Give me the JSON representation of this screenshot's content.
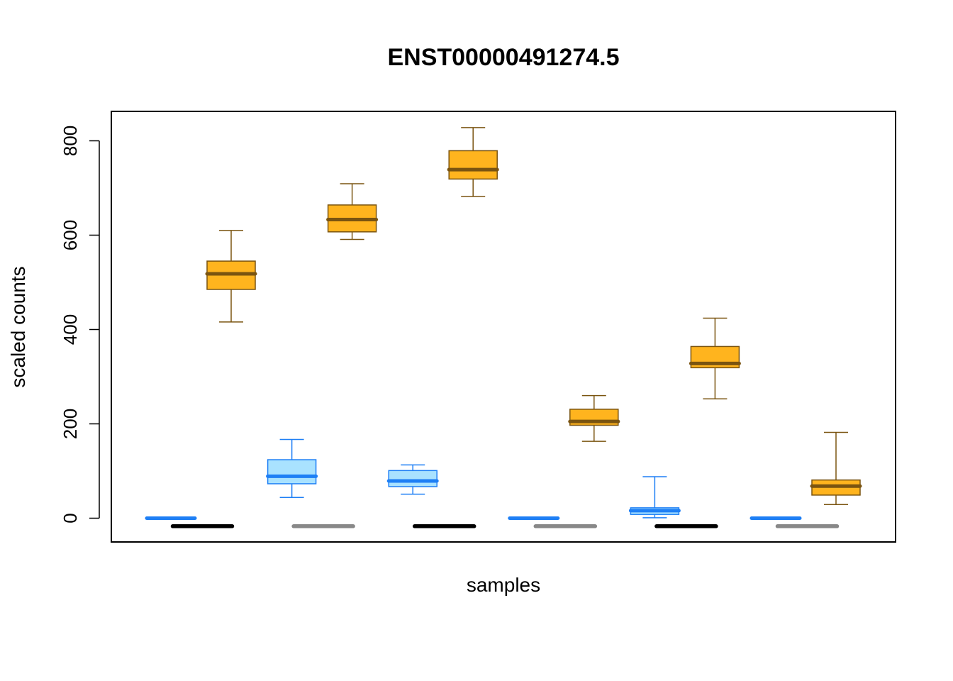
{
  "chart_data": {
    "type": "boxplot",
    "title": "ENST00000491274.5",
    "xlabel": "samples",
    "ylabel": "scaled counts",
    "ylim": [
      -50,
      860
    ],
    "yticks": [
      0,
      200,
      400,
      600,
      800
    ],
    "grid": false,
    "colors": {
      "blue_fill": "#a9e2ff",
      "blue_line": "#1e7ff5",
      "orange_fill": "#ffb41e",
      "orange_line": "#7a5410",
      "black": "#000000",
      "gray": "#888888"
    },
    "groups": [
      {
        "blue": {
          "min": 0,
          "q1": 0,
          "median": 0,
          "q3": 0,
          "max": 0
        },
        "marker": "black",
        "orange": {
          "min": 416,
          "q1": 485,
          "median": 518,
          "q3": 545,
          "max": 610
        }
      },
      {
        "blue": {
          "min": 44,
          "q1": 73,
          "median": 89,
          "q3": 124,
          "max": 167
        },
        "marker": "gray",
        "orange": {
          "min": 591,
          "q1": 607,
          "median": 633,
          "q3": 664,
          "max": 709
        }
      },
      {
        "blue": {
          "min": 51,
          "q1": 67,
          "median": 79,
          "q3": 101,
          "max": 113
        },
        "marker": "black",
        "orange": {
          "min": 682,
          "q1": 719,
          "median": 739,
          "q3": 779,
          "max": 828
        }
      },
      {
        "blue": {
          "min": 0,
          "q1": 0,
          "median": 0,
          "q3": 0,
          "max": 0
        },
        "marker": "gray",
        "orange": {
          "min": 163,
          "q1": 197,
          "median": 205,
          "q3": 231,
          "max": 260
        }
      },
      {
        "blue": {
          "min": 1,
          "q1": 8,
          "median": 16,
          "q3": 22,
          "max": 88
        },
        "marker": "black",
        "orange": {
          "min": 253,
          "q1": 319,
          "median": 328,
          "q3": 364,
          "max": 424
        }
      },
      {
        "blue": {
          "min": 0,
          "q1": 0,
          "median": 0,
          "q3": 0,
          "max": 0
        },
        "marker": "gray",
        "orange": {
          "min": 29,
          "q1": 49,
          "median": 68,
          "q3": 81,
          "max": 182
        }
      }
    ]
  }
}
